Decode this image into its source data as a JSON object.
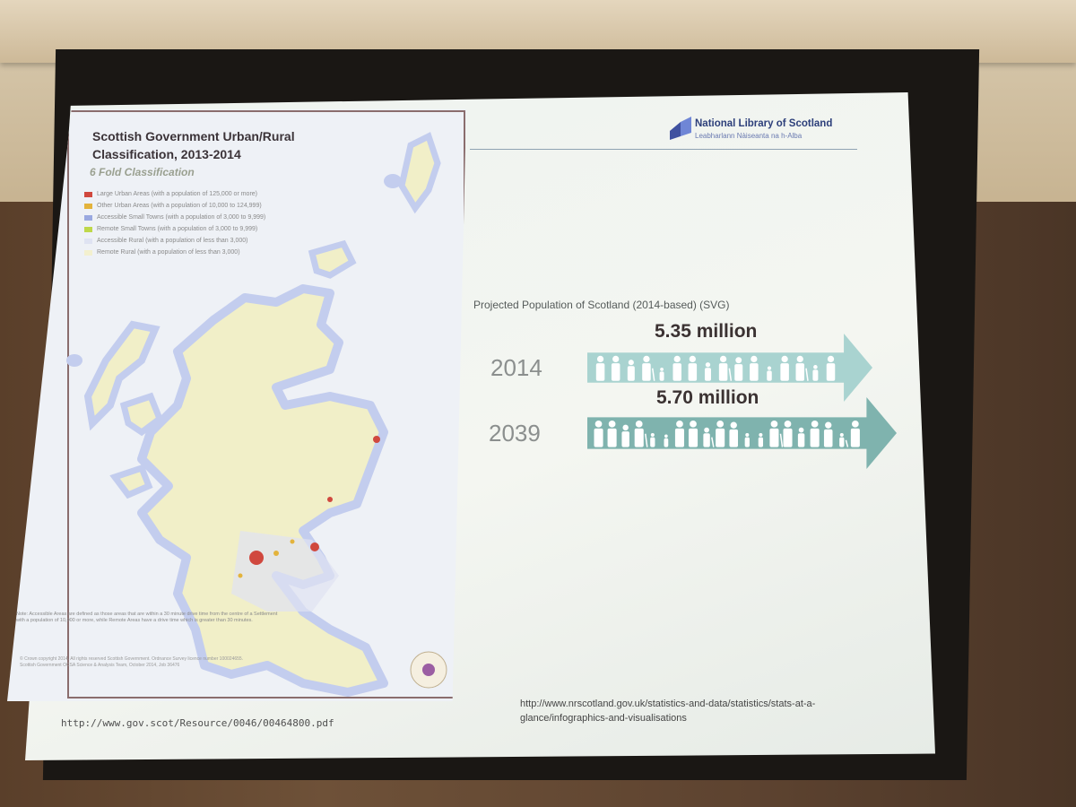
{
  "map": {
    "title_line1": "Scottish Government Urban/Rural",
    "title_line2": "Classification, 2013-2014",
    "subtitle": "6 Fold Classification",
    "legend": [
      {
        "label": "Large Urban Areas (with a population of 125,000 or more)",
        "color": "#d0483e"
      },
      {
        "label": "Other Urban Areas (with a population of 10,000 to 124,999)",
        "color": "#e3b33c"
      },
      {
        "label": "Accessible Small Towns (with a population of 3,000 to 9,999)",
        "color": "#9aa9e0"
      },
      {
        "label": "Remote Small Towns (with a population of 3,000 to 9,999)",
        "color": "#bfd84a"
      },
      {
        "label": "Accessible Rural (with a population of less than 3,000)",
        "color": "#dfe3f2"
      },
      {
        "label": "Remote Rural (with a population of less than 3,000)",
        "color": "#f3f0cf"
      }
    ],
    "note": "Note: Accessible Areas are defined as those areas that are within a 30 minute drive time from the centre of a Settlement with a population of 10,000 or more, while Remote Areas have a drive time which is greater than 30 minutes.",
    "copyright": "© Crown copyright 2014. All rights reserved Scottish Government. Ordnance Survey licence number 100024655.",
    "credit": "Scottish Government OCSA Science & Analysis Team, October 2014, Job 36476"
  },
  "logo": {
    "name": "National Library of Scotland",
    "gaelic": "Leabharlann Nàiseanta na h-Alba"
  },
  "projection": {
    "title": "Projected Population of Scotland (2014-based) (SVG)",
    "rows": [
      {
        "year": "2014",
        "value": "5.35 million"
      },
      {
        "year": "2039",
        "value": "5.70 million"
      }
    ]
  },
  "links": {
    "left": "http://www.gov.scot/Resource/0046/00464800.pdf",
    "right": "http://www.nrscotland.gov.uk/statistics-and-data/statistics/stats-at-a-glance/infographics-and-visualisations"
  },
  "colors": {
    "arrow_2014": "#a9d3d0",
    "arrow_2039": "#7fb3ae",
    "figure": "#ffffff"
  }
}
